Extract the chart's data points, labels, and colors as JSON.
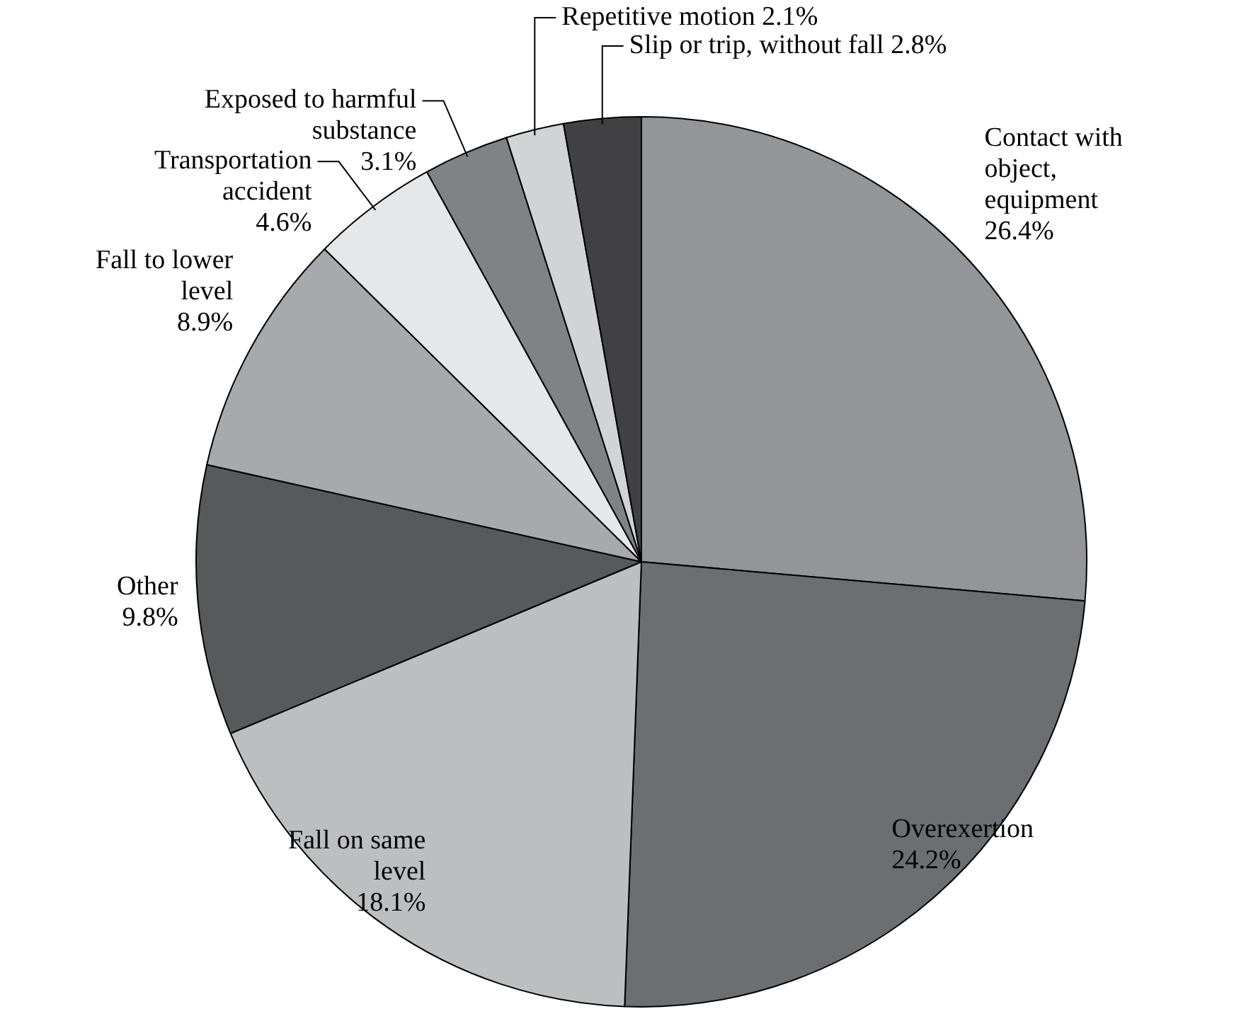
{
  "chart_data": {
    "type": "pie",
    "categories": [
      "Contact with object, equipment",
      "Overexertion",
      "Fall on same level",
      "Other",
      "Fall to lower level",
      "Transportation accident",
      "Exposed to harmful substance",
      "Repetitive motion",
      "Slip or trip, without fall"
    ],
    "values": [
      26.4,
      24.2,
      18.1,
      9.8,
      8.9,
      4.6,
      3.1,
      2.1,
      2.8
    ],
    "value_labels": [
      "26.4%",
      "24.2%",
      "18.1%",
      "9.8%",
      "8.9%",
      "4.6%",
      "3.1%",
      "2.1%",
      "2.8%"
    ],
    "colors": [
      "#939598",
      "#6d6e71",
      "#bcbec0",
      "#58595b",
      "#a7a9ac",
      "#e6e7e8",
      "#808285",
      "#d1d3d4",
      "#414042"
    ],
    "legend": false
  }
}
